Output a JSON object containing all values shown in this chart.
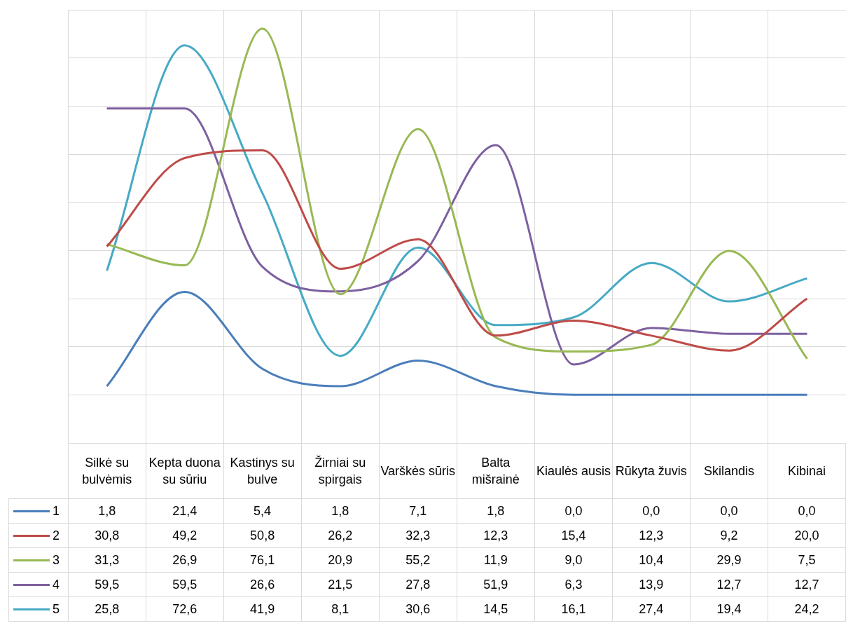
{
  "chart_data": {
    "type": "line",
    "categories": [
      "Silkė su bulvėmis",
      "Kepta duona su sūriu",
      "Kastinys su bulve",
      "Žirniai su spirgais",
      "Varškės sūris",
      "Balta mišrainė",
      "Kiaulės ausis",
      "Rūkyta žuvis",
      "Skilandis",
      "Kibinai"
    ],
    "series": [
      {
        "name": "1",
        "color": "#4a7ebb",
        "values": [
          1.8,
          21.4,
          5.4,
          1.8,
          7.1,
          1.8,
          0.0,
          0.0,
          0.0,
          0.0
        ],
        "value_labels": [
          "1,8",
          "21,4",
          "5,4",
          "1,8",
          "7,1",
          "1,8",
          "0,0",
          "0,0",
          "0,0",
          "0,0"
        ]
      },
      {
        "name": "2",
        "color": "#be4b48",
        "values": [
          30.8,
          49.2,
          50.8,
          26.2,
          32.3,
          12.3,
          15.4,
          12.3,
          9.2,
          20.0
        ],
        "value_labels": [
          "30,8",
          "49,2",
          "50,8",
          "26,2",
          "32,3",
          "12,3",
          "15,4",
          "12,3",
          "9,2",
          "20,0"
        ]
      },
      {
        "name": "3",
        "color": "#98b954",
        "values": [
          31.3,
          26.9,
          76.1,
          20.9,
          55.2,
          11.9,
          9.0,
          10.4,
          29.9,
          7.5
        ],
        "value_labels": [
          "31,3",
          "26,9",
          "76,1",
          "20,9",
          "55,2",
          "11,9",
          "9,0",
          "10,4",
          "29,9",
          "7,5"
        ]
      },
      {
        "name": "4",
        "color": "#7d60a0",
        "values": [
          59.5,
          59.5,
          26.6,
          21.5,
          27.8,
          51.9,
          6.3,
          13.9,
          12.7,
          12.7
        ],
        "value_labels": [
          "59,5",
          "59,5",
          "26,6",
          "21,5",
          "27,8",
          "51,9",
          "6,3",
          "13,9",
          "12,7",
          "12,7"
        ]
      },
      {
        "name": "5",
        "color": "#46aac5",
        "values": [
          25.8,
          72.6,
          41.9,
          8.1,
          30.6,
          14.5,
          16.1,
          27.4,
          19.4,
          24.2
        ],
        "value_labels": [
          "25,8",
          "72,6",
          "41,9",
          "8,1",
          "30,6",
          "14,5",
          "16,1",
          "27,4",
          "19,4",
          "24,2"
        ]
      }
    ],
    "grid": true,
    "legend": "bottom",
    "tick_labels": "x",
    "marker": "none",
    "line_style": "solid"
  }
}
